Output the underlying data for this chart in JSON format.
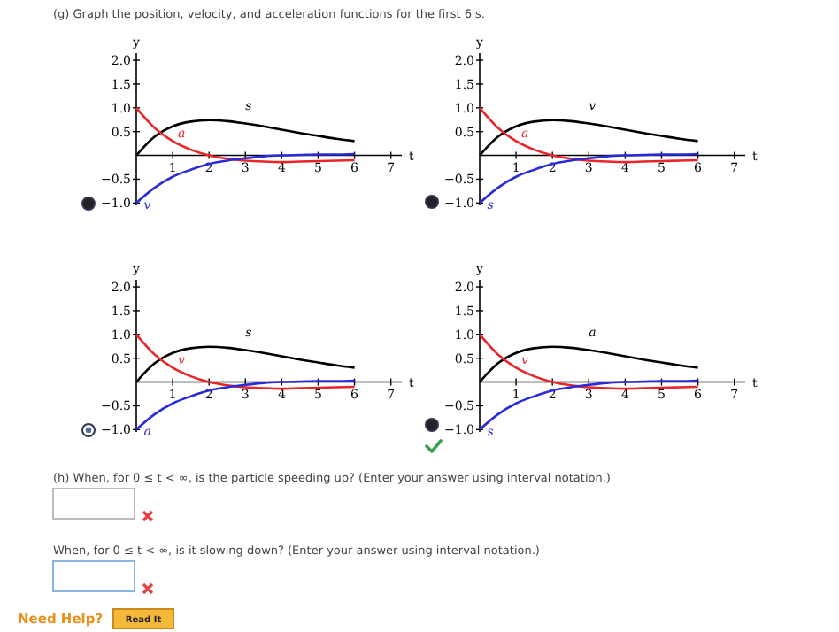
{
  "chart_data": [
    {
      "type": "other",
      "title": "(g) Graph the position, velocity, and acceleration functions for the first 6 s.",
      "annotations": [
        "(h) When, for 0 ≤ t < ∞, is the particle speeding up? (Enter your answer using interval notation.)",
        "When, for 0 ≤ t < ∞, is it slowing down? (Enter your answer using interval notation.)",
        "Need Help?",
        "Read It"
      ]
    },
    {
      "type": "line",
      "xlabel": "t",
      "ylabel": "y",
      "xlim": [
        0,
        7.3
      ],
      "ylim": [
        -1.05,
        2.15
      ],
      "xticks": [
        1,
        2,
        3,
        4,
        5,
        6,
        7
      ],
      "yticks": [
        {
          "value": -1,
          "label": "−1.0"
        },
        {
          "value": -0.5,
          "label": "−0.5"
        },
        {
          "value": 0.5,
          "label": "0.5"
        },
        {
          "value": 1,
          "label": "1.0"
        },
        {
          "value": 1.5,
          "label": "1.5"
        },
        {
          "value": 2,
          "label": "2.0"
        }
      ],
      "x": [
        0,
        0.5,
        1,
        1.5,
        2,
        2.5,
        3,
        3.5,
        4,
        4.5,
        5,
        5.5,
        6
      ],
      "series": [
        {
          "name": "s",
          "color": "#000000",
          "values": [
            0,
            0.39,
            0.61,
            0.71,
            0.74,
            0.72,
            0.67,
            0.61,
            0.54,
            0.47,
            0.41,
            0.35,
            0.3
          ]
        },
        {
          "name": "a",
          "color": "#e8262a",
          "values": [
            1,
            0.58,
            0.3,
            0.12,
            0,
            -0.07,
            -0.11,
            -0.13,
            -0.14,
            -0.13,
            -0.12,
            -0.11,
            -0.1
          ]
        },
        {
          "name": "v",
          "color": "#2a2ad8",
          "values": [
            -1,
            -0.68,
            -0.45,
            -0.3,
            -0.18,
            -0.11,
            -0.06,
            -0.02,
            0,
            0.01,
            0.02,
            0.02,
            0.03
          ]
        }
      ]
    },
    {
      "type": "line",
      "xlabel": "t",
      "ylabel": "y",
      "xlim": [
        0,
        7.3
      ],
      "ylim": [
        -1.05,
        2.15
      ],
      "xticks": [
        1,
        2,
        3,
        4,
        5,
        6,
        7
      ],
      "yticks": [
        {
          "value": -1,
          "label": "−1.0"
        },
        {
          "value": -0.5,
          "label": "−0.5"
        },
        {
          "value": 0.5,
          "label": "0.5"
        },
        {
          "value": 1,
          "label": "1.0"
        },
        {
          "value": 1.5,
          "label": "1.5"
        },
        {
          "value": 2,
          "label": "2.0"
        }
      ],
      "x": [
        0,
        0.5,
        1,
        1.5,
        2,
        2.5,
        3,
        3.5,
        4,
        4.5,
        5,
        5.5,
        6
      ],
      "series": [
        {
          "name": "v",
          "color": "#000000",
          "values": [
            0,
            0.39,
            0.61,
            0.71,
            0.74,
            0.72,
            0.67,
            0.61,
            0.54,
            0.47,
            0.41,
            0.35,
            0.3
          ]
        },
        {
          "name": "a",
          "color": "#e8262a",
          "values": [
            1,
            0.58,
            0.3,
            0.12,
            0,
            -0.07,
            -0.11,
            -0.13,
            -0.14,
            -0.13,
            -0.12,
            -0.11,
            -0.1
          ]
        },
        {
          "name": "s",
          "color": "#2a2ad8",
          "values": [
            -1,
            -0.68,
            -0.45,
            -0.3,
            -0.18,
            -0.11,
            -0.06,
            -0.02,
            0,
            0.01,
            0.02,
            0.02,
            0.03
          ]
        }
      ]
    },
    {
      "type": "line",
      "xlabel": "t",
      "ylabel": "y",
      "xlim": [
        0,
        7.3
      ],
      "ylim": [
        -1.05,
        2.15
      ],
      "xticks": [
        1,
        2,
        3,
        4,
        5,
        6,
        7
      ],
      "yticks": [
        {
          "value": -1,
          "label": "−1.0"
        },
        {
          "value": -0.5,
          "label": "−0.5"
        },
        {
          "value": 0.5,
          "label": "0.5"
        },
        {
          "value": 1,
          "label": "1.0"
        },
        {
          "value": 1.5,
          "label": "1.5"
        },
        {
          "value": 2,
          "label": "2.0"
        }
      ],
      "x": [
        0,
        0.5,
        1,
        1.5,
        2,
        2.5,
        3,
        3.5,
        4,
        4.5,
        5,
        5.5,
        6
      ],
      "series": [
        {
          "name": "s",
          "color": "#000000",
          "values": [
            0,
            0.39,
            0.61,
            0.71,
            0.74,
            0.72,
            0.67,
            0.61,
            0.54,
            0.47,
            0.41,
            0.35,
            0.3
          ]
        },
        {
          "name": "v",
          "color": "#e8262a",
          "values": [
            1,
            0.58,
            0.3,
            0.12,
            0,
            -0.07,
            -0.11,
            -0.13,
            -0.14,
            -0.13,
            -0.12,
            -0.11,
            -0.1
          ]
        },
        {
          "name": "a",
          "color": "#2a2ad8",
          "values": [
            -1,
            -0.68,
            -0.45,
            -0.3,
            -0.18,
            -0.11,
            -0.06,
            -0.02,
            0,
            0.01,
            0.02,
            0.02,
            0.03
          ]
        }
      ]
    },
    {
      "type": "line",
      "xlabel": "t",
      "ylabel": "y",
      "xlim": [
        0,
        7.3
      ],
      "ylim": [
        -1.05,
        2.15
      ],
      "xticks": [
        1,
        2,
        3,
        4,
        5,
        6,
        7
      ],
      "yticks": [
        {
          "value": -1,
          "label": "−1.0"
        },
        {
          "value": -0.5,
          "label": "−0.5"
        },
        {
          "value": 0.5,
          "label": "0.5"
        },
        {
          "value": 1,
          "label": "1.0"
        },
        {
          "value": 1.5,
          "label": "1.5"
        },
        {
          "value": 2,
          "label": "2.0"
        }
      ],
      "x": [
        0,
        0.5,
        1,
        1.5,
        2,
        2.5,
        3,
        3.5,
        4,
        4.5,
        5,
        5.5,
        6
      ],
      "series": [
        {
          "name": "a",
          "color": "#000000",
          "values": [
            0,
            0.39,
            0.61,
            0.71,
            0.74,
            0.72,
            0.67,
            0.61,
            0.54,
            0.47,
            0.41,
            0.35,
            0.3
          ]
        },
        {
          "name": "v",
          "color": "#e8262a",
          "values": [
            1,
            0.58,
            0.3,
            0.12,
            0,
            -0.07,
            -0.11,
            -0.13,
            -0.14,
            -0.13,
            -0.12,
            -0.11,
            -0.1
          ]
        },
        {
          "name": "s",
          "color": "#2a2ad8",
          "values": [
            -1,
            -0.68,
            -0.45,
            -0.3,
            -0.18,
            -0.11,
            -0.06,
            -0.02,
            0,
            0.01,
            0.02,
            0.02,
            0.03
          ]
        }
      ]
    }
  ]
}
